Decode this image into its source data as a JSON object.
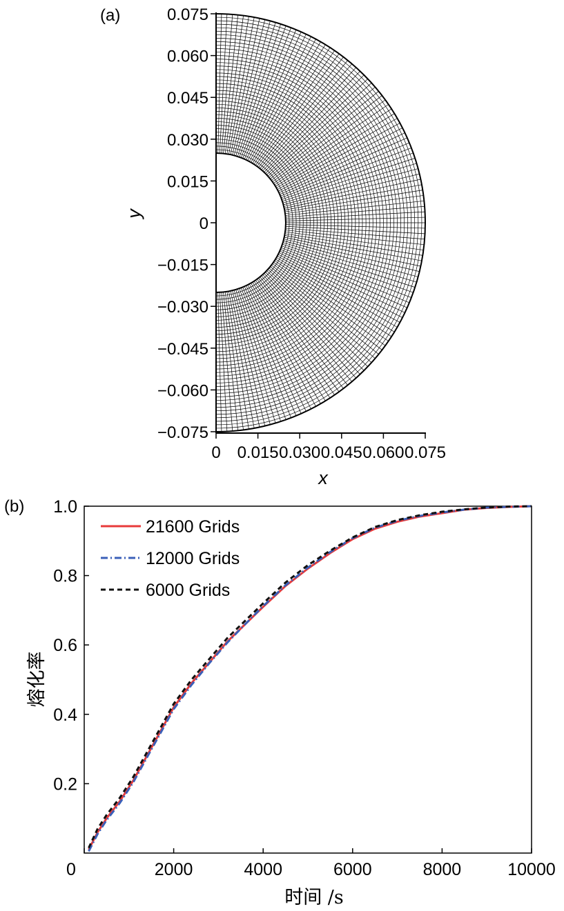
{
  "chart_data": [
    {
      "type": "mesh",
      "panel_label": "(a)",
      "description_role": "semi-annular computational grid",
      "xlabel": "x",
      "ylabel": "y",
      "xlim": [
        0,
        0.075
      ],
      "ylim": [
        -0.075,
        0.075
      ],
      "x_ticks": [
        {
          "v": 0,
          "label": "0"
        },
        {
          "v": 0.015,
          "label": "0.015"
        },
        {
          "v": 0.03,
          "label": "0.030"
        },
        {
          "v": 0.045,
          "label": "0.045"
        },
        {
          "v": 0.06,
          "label": "0.060"
        },
        {
          "v": 0.075,
          "label": "0.075"
        }
      ],
      "y_ticks": [
        {
          "v": 0.075,
          "label": "0.075"
        },
        {
          "v": 0.06,
          "label": "0.060"
        },
        {
          "v": 0.045,
          "label": "0.045"
        },
        {
          "v": 0.03,
          "label": "0.030"
        },
        {
          "v": 0.015,
          "label": "0.015"
        },
        {
          "v": 0,
          "label": "0"
        },
        {
          "v": -0.015,
          "label": "−0.015"
        },
        {
          "v": -0.03,
          "label": "−0.030"
        },
        {
          "v": -0.045,
          "label": "−0.045"
        },
        {
          "v": -0.06,
          "label": "−0.060"
        },
        {
          "v": -0.075,
          "label": "−0.075"
        }
      ],
      "inner_radius": 0.025,
      "outer_radius": 0.075,
      "radial_divisions": 40,
      "angular_divisions": 120
    },
    {
      "type": "line",
      "panel_label": "(b)",
      "xlabel": "时间 /s",
      "ylabel": "熔化率",
      "xlim": [
        0,
        10000
      ],
      "ylim": [
        0,
        1.0
      ],
      "x_ticks": [
        {
          "v": 0,
          "label": "0"
        },
        {
          "v": 2000,
          "label": "2000"
        },
        {
          "v": 4000,
          "label": "4000"
        },
        {
          "v": 6000,
          "label": "6000"
        },
        {
          "v": 8000,
          "label": "8000"
        },
        {
          "v": 10000,
          "label": "10000"
        }
      ],
      "y_ticks": [
        {
          "v": 0.2,
          "label": "0.2"
        },
        {
          "v": 0.4,
          "label": "0.4"
        },
        {
          "v": 0.6,
          "label": "0.6"
        },
        {
          "v": 0.8,
          "label": "0.8"
        },
        {
          "v": 1.0,
          "label": "1.0"
        }
      ],
      "x": [
        100,
        300,
        500,
        800,
        1100,
        1400,
        1700,
        2000,
        2400,
        2800,
        3200,
        3600,
        4000,
        4500,
        5000,
        5500,
        6000,
        6500,
        7000,
        7500,
        8000,
        8500,
        9000,
        9500,
        10000
      ],
      "series": [
        {
          "name": "21600 Grids",
          "color": "#e83a3a",
          "dash": "solid",
          "values": [
            0.01,
            0.06,
            0.1,
            0.15,
            0.21,
            0.28,
            0.35,
            0.42,
            0.49,
            0.55,
            0.61,
            0.66,
            0.71,
            0.77,
            0.82,
            0.865,
            0.905,
            0.935,
            0.955,
            0.97,
            0.98,
            0.99,
            0.995,
            0.998,
            1.0
          ]
        },
        {
          "name": "12000 Grids",
          "color": "#3a5fb8",
          "dash": "dashdot",
          "values": [
            0.005,
            0.055,
            0.095,
            0.145,
            0.205,
            0.275,
            0.345,
            0.415,
            0.485,
            0.548,
            0.607,
            0.66,
            0.712,
            0.772,
            0.823,
            0.868,
            0.908,
            0.938,
            0.958,
            0.972,
            0.982,
            0.99,
            0.996,
            0.998,
            1.0
          ]
        },
        {
          "name": "6000 Grids",
          "color": "#111111",
          "dash": "dashed",
          "values": [
            0.015,
            0.07,
            0.11,
            0.16,
            0.22,
            0.29,
            0.36,
            0.43,
            0.5,
            0.56,
            0.62,
            0.67,
            0.72,
            0.78,
            0.83,
            0.872,
            0.91,
            0.94,
            0.96,
            0.974,
            0.984,
            0.991,
            0.996,
            0.999,
            1.0
          ]
        }
      ]
    }
  ]
}
